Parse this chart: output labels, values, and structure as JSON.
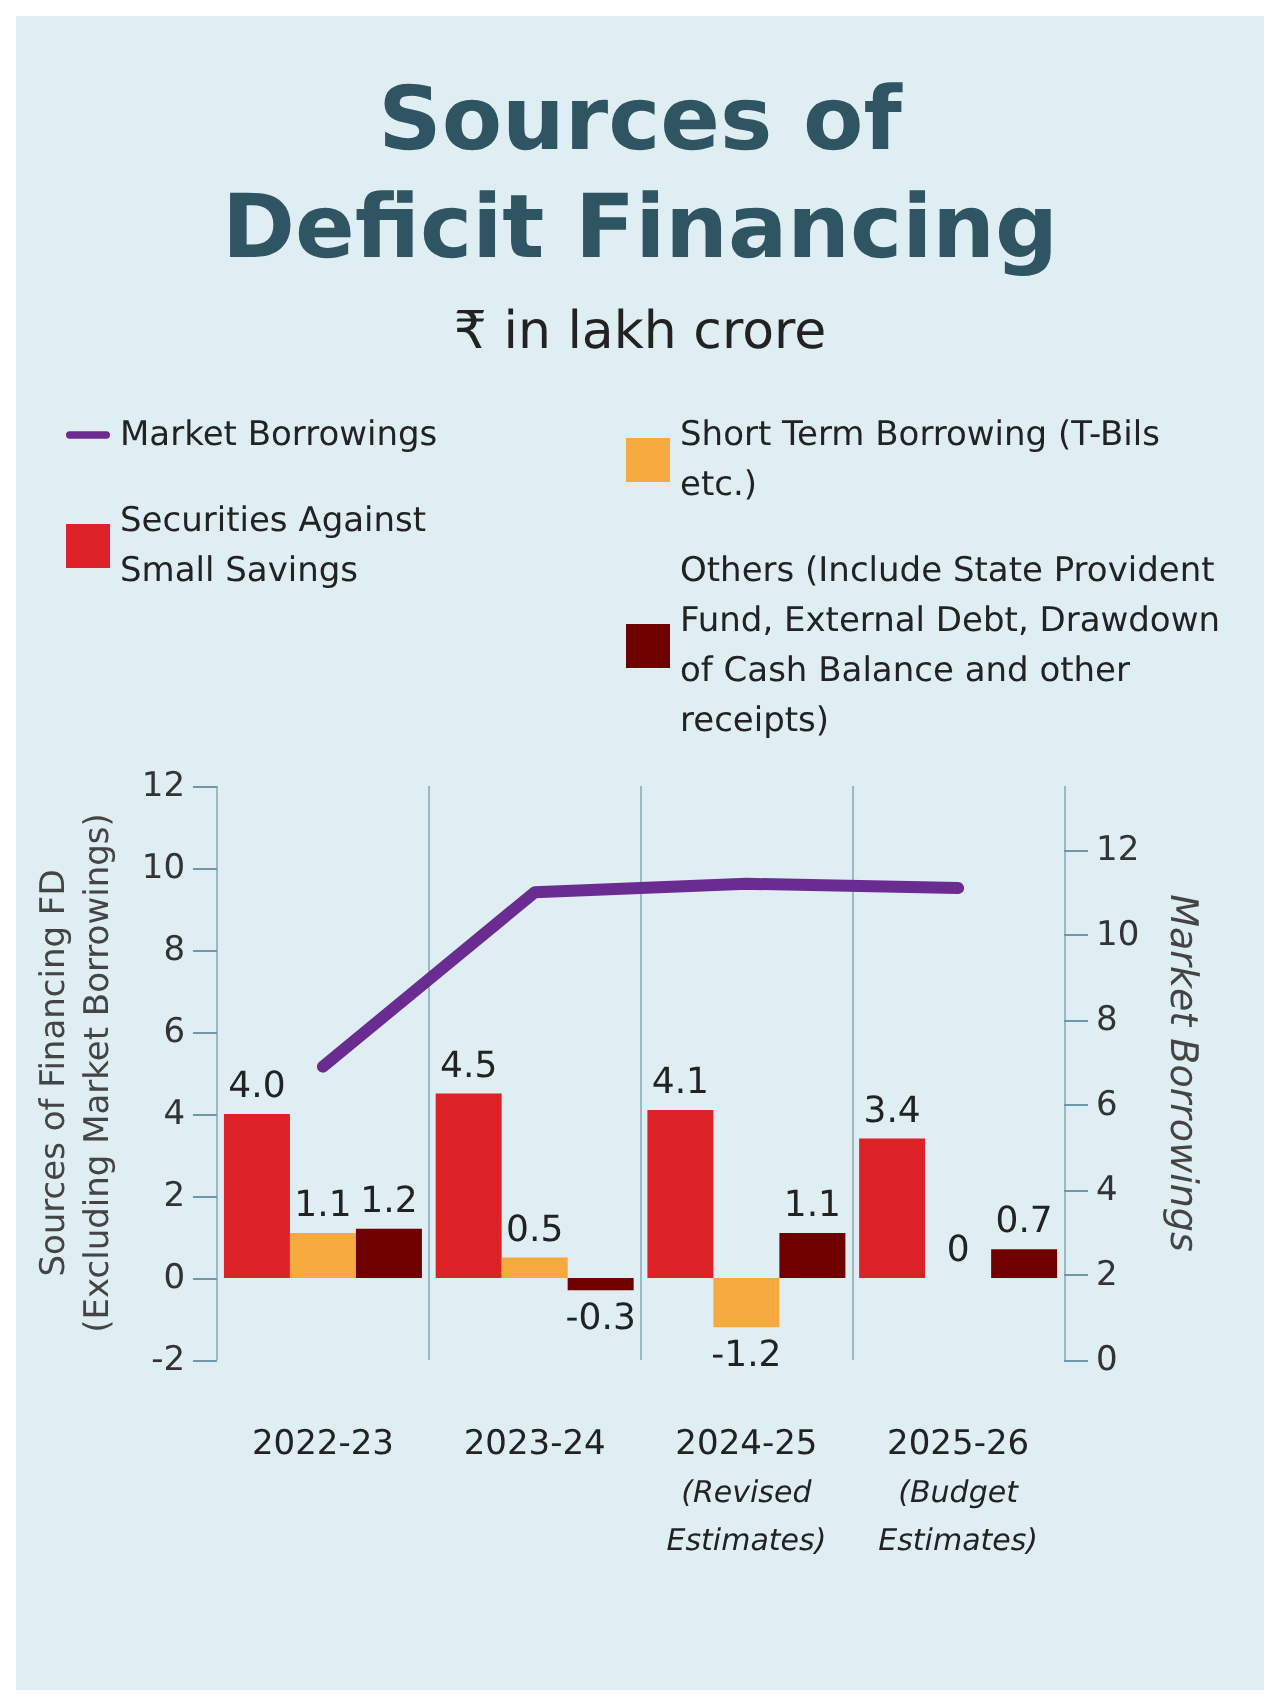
{
  "chart_data": {
    "type": "bar",
    "title": "Sources of\nDeficit Financing",
    "subtitle": "₹ in lakh crore",
    "ylabel": "Sources of Financing FD\n(Excluding Market Borrowings)",
    "y2label": "Market Borrowings",
    "categories": [
      "2022-23",
      "2023-24",
      "2024-25\n(Revised\nEstimates)",
      "2025-26\n(Budget\nEstimates)"
    ],
    "series": [
      {
        "name": "Market Borrowings",
        "type": "line",
        "axis": "y2",
        "color": "#6a2c91",
        "values": [
          6.9,
          11.0,
          11.2,
          11.1
        ]
      },
      {
        "name": "Securities Against Small Savings",
        "color": "#dc2127",
        "values": [
          4.0,
          4.5,
          4.1,
          3.4
        ],
        "value_labels": [
          "4.0",
          "4.5",
          "4.1",
          "3.4"
        ]
      },
      {
        "name": "Short Term Borrowing (T-Bils etc.)",
        "color": "#f5a93f",
        "values": [
          1.1,
          0.5,
          -1.2,
          0
        ],
        "value_labels": [
          "1.1",
          "0.5",
          "-1.2",
          "0"
        ]
      },
      {
        "name": "Others (Include State Provident Fund, External Debt, Drawdown of Cash Balance and other receipts)",
        "color": "#6e0000",
        "values": [
          1.2,
          -0.3,
          1.1,
          0.7
        ],
        "value_labels": [
          "1.2",
          "-0.3",
          "1.1",
          "0.7"
        ]
      }
    ],
    "ylim": [
      -2,
      12
    ],
    "yticks": [
      -2,
      0,
      2,
      4,
      6,
      8,
      10,
      12
    ],
    "y2lim": [
      0,
      13.5
    ],
    "y2ticks": [
      0,
      2,
      4,
      6,
      8,
      10,
      12
    ],
    "grid": "x",
    "legend": "top",
    "marker": "none",
    "line_style": "solid"
  }
}
